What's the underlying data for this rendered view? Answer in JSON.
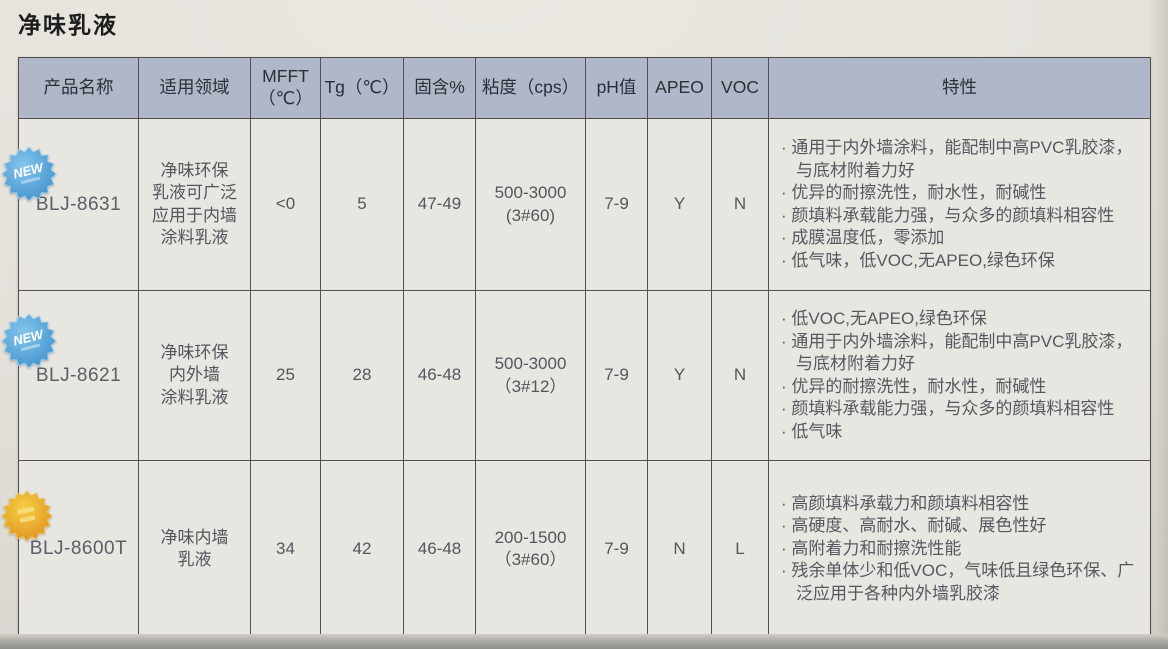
{
  "page": {
    "title": "净味乳液"
  },
  "colors": {
    "header_bg": "#b0b7c9",
    "cell_bg": "#e8e6e1",
    "border": "#54524e",
    "badge_blue": "#4aa2da",
    "badge_gold": "#e89a28"
  },
  "table": {
    "headers": {
      "product": "产品名称",
      "field": "适用领域",
      "mfft": "MFFT\n（℃）",
      "tg": "Tg（℃）",
      "solids": "固含%",
      "viscosity": "粘度（cps）",
      "ph": "pH值",
      "apeo": "APEO",
      "voc": "VOC",
      "features": "特性"
    },
    "rows": [
      {
        "badge": "NEW",
        "badge_type": "blue-new-starburst",
        "product": "BLJ-8631",
        "field": "净味环保\n乳液可广泛\n应用于内墙\n涂料乳液",
        "mfft": "<0",
        "tg": "5",
        "solids": "47-49",
        "viscosity": "500-3000\n(3#60)",
        "ph": "7-9",
        "apeo": "Y",
        "voc": "N",
        "features": [
          "通用于内外墙涂料，能配制中高PVC乳胶漆，与底材附着力好",
          "优异的耐擦洗性，耐水性，耐碱性",
          "颜填料承载能力强，与众多的颜填料相容性",
          "成膜温度低，零添加",
          "低气味，低VOC,无APEO,绿色环保"
        ]
      },
      {
        "badge": "NEW",
        "badge_type": "blue-new-starburst",
        "product": "BLJ-8621",
        "field": "净味环保\n内外墙\n涂料乳液",
        "mfft": "25",
        "tg": "28",
        "solids": "46-48",
        "viscosity": "500-3000\n（3#12）",
        "ph": "7-9",
        "apeo": "Y",
        "voc": "N",
        "features": [
          "低VOC,无APEO,绿色环保",
          "通用于内外墙涂料，能配制中高PVC乳胶漆，与底材附着力好",
          "优异的耐擦洗性，耐水性，耐碱性",
          "颜填料承载能力强，与众多的颜填料相容性",
          "低气味"
        ]
      },
      {
        "badge": "",
        "badge_type": "gold-starburst",
        "product": "BLJ-8600T",
        "field": "净味内墙\n乳液",
        "mfft": "34",
        "tg": "42",
        "solids": "46-48",
        "viscosity": "200-1500\n（3#60）",
        "ph": "7-9",
        "apeo": "N",
        "voc": "L",
        "features": [
          "高颜填料承载力和颜填料相容性",
          "高硬度、高耐水、耐碱、展色性好",
          "高附着力和耐擦洗性能",
          "残余单体少和低VOC，气味低且绿色环保、广泛应用于各种内外墙乳胶漆"
        ]
      }
    ]
  }
}
